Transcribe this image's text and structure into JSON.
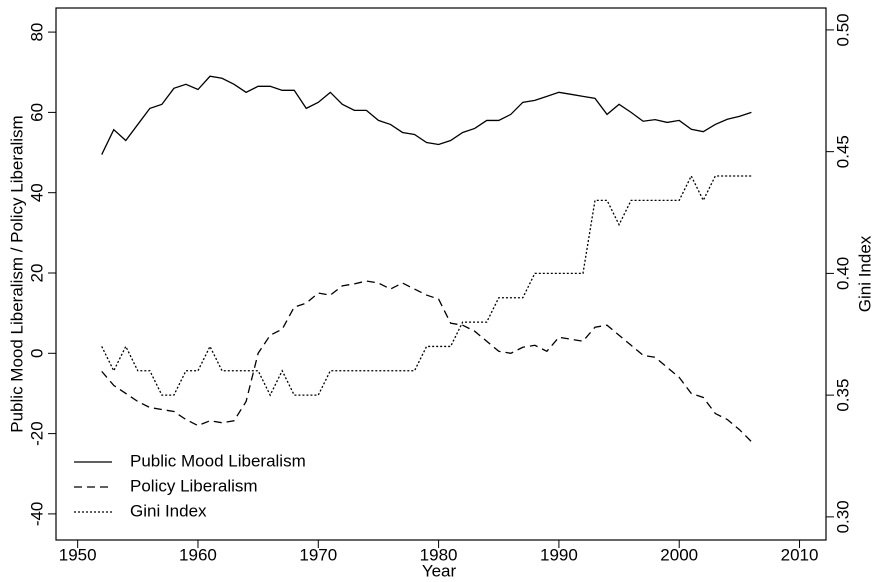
{
  "chart_data": {
    "type": "line",
    "x_label": "Year",
    "y_label": "Public Mood Liberalism / Policy Liberalism",
    "y2_label": "Gini Index",
    "x": [
      1952,
      1953,
      1954,
      1955,
      1956,
      1957,
      1958,
      1959,
      1960,
      1961,
      1962,
      1963,
      1964,
      1965,
      1966,
      1967,
      1968,
      1969,
      1970,
      1971,
      1972,
      1973,
      1974,
      1975,
      1976,
      1977,
      1978,
      1979,
      1980,
      1981,
      1982,
      1983,
      1984,
      1985,
      1986,
      1987,
      1988,
      1989,
      1990,
      1991,
      1992,
      1993,
      1994,
      1995,
      1996,
      1997,
      1998,
      1999,
      2000,
      2001,
      2002,
      2003,
      2004,
      2005,
      2006
    ],
    "series": [
      {
        "name": "Public Mood Liberalism",
        "color": "#000000",
        "dash": "solid",
        "values": [
          49.5,
          55.7,
          53,
          57,
          61,
          62,
          66,
          67,
          65.7,
          69,
          68.5,
          67,
          65,
          66.5,
          66.5,
          65.5,
          65.5,
          61,
          62.5,
          65,
          62,
          60.5,
          60.5,
          58,
          57,
          55,
          54.5,
          52.5,
          52,
          53,
          55,
          56,
          58,
          58,
          59.5,
          62.5,
          63,
          64,
          65,
          64.5,
          64,
          63.5,
          59.5,
          62,
          60,
          57.8,
          58.2,
          57.5,
          58,
          55.8,
          55.2,
          57,
          58.3,
          59,
          60
        ]
      },
      {
        "name": "Policy Liberalism",
        "color": "#000000",
        "dash": "dashed",
        "values": [
          -4.5,
          -8,
          -10,
          -12,
          -13.5,
          -14,
          -14.5,
          -16.5,
          -18,
          -16.8,
          -17.3,
          -16.8,
          -12,
          0,
          4.5,
          6,
          11.5,
          12.5,
          15,
          14.5,
          16.8,
          17.3,
          18,
          17.5,
          16,
          17.5,
          16,
          14.5,
          13.5,
          7.5,
          7,
          5.5,
          3,
          0.5,
          0,
          1.5,
          2,
          0.5,
          4,
          3.5,
          3,
          6.5,
          7,
          4.5,
          2,
          -0.5,
          -1,
          -3.5,
          -6,
          -10,
          -11,
          -15,
          -16.5,
          -19,
          -22
        ]
      },
      {
        "name": "Gini Index",
        "color": "#000000",
        "dash": "dotted",
        "axis": "y2",
        "values": [
          0.37,
          0.36,
          0.37,
          0.36,
          0.36,
          0.35,
          0.35,
          0.36,
          0.36,
          0.37,
          0.36,
          0.36,
          0.36,
          0.36,
          0.35,
          0.36,
          0.35,
          0.35,
          0.35,
          0.36,
          0.36,
          0.36,
          0.36,
          0.36,
          0.36,
          0.36,
          0.36,
          0.37,
          0.37,
          0.37,
          0.38,
          0.38,
          0.38,
          0.39,
          0.39,
          0.39,
          0.4,
          0.4,
          0.4,
          0.4,
          0.4,
          0.43,
          0.43,
          0.42,
          0.43,
          0.43,
          0.43,
          0.43,
          0.43,
          0.44,
          0.43,
          0.44,
          0.44,
          0.44,
          0.44
        ]
      }
    ],
    "xlim": [
      1948.2,
      2012.2
    ],
    "xticks": [
      1950,
      1960,
      1970,
      1980,
      1990,
      2000,
      2010
    ],
    "ylim": [
      -46.5,
      86
    ],
    "yticks": [
      -40,
      -20,
      0,
      20,
      40,
      60,
      80
    ],
    "y2lim": [
      0.2905,
      0.509
    ],
    "y2ticks": [
      {
        "value": 0.3,
        "label": "0.30"
      },
      {
        "value": 0.35,
        "label": "0.35"
      },
      {
        "value": 0.4,
        "label": "0.40"
      },
      {
        "value": 0.45,
        "label": "0.45"
      },
      {
        "value": 0.5,
        "label": "0.50"
      }
    ],
    "legend": "lower left",
    "grid": false
  }
}
